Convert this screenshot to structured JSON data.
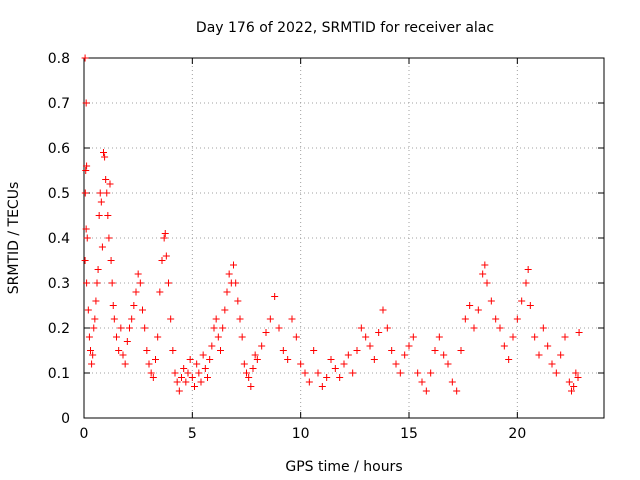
{
  "chart_data": {
    "type": "scatter",
    "title": "Day 176 of 2022, SRMTID for receiver alac",
    "xlabel": "GPS time / hours",
    "ylabel": "SRMTID / TECUs",
    "xlim": [
      0,
      24
    ],
    "ylim": [
      0,
      0.8
    ],
    "xticks": [
      0,
      5,
      10,
      15,
      20
    ],
    "yticks": [
      0,
      0.1,
      0.2,
      0.3,
      0.4,
      0.5,
      0.6,
      0.7,
      0.8
    ],
    "xtick_labels": [
      "0",
      "5",
      "10",
      "15",
      "20"
    ],
    "ytick_labels": [
      "0",
      "0.1",
      "0.2",
      "0.3",
      "0.4",
      "0.5",
      "0.6",
      "0.7",
      "0.8"
    ],
    "grid": true,
    "marker": "+",
    "color": "#ff0000",
    "series": [
      {
        "name": "SRMTID",
        "points": [
          [
            0.05,
            0.8
          ],
          [
            0.1,
            0.7
          ],
          [
            0.08,
            0.55
          ],
          [
            0.12,
            0.56
          ],
          [
            0.06,
            0.5
          ],
          [
            0.1,
            0.42
          ],
          [
            0.15,
            0.4
          ],
          [
            0.05,
            0.35
          ],
          [
            0.12,
            0.3
          ],
          [
            0.2,
            0.24
          ],
          [
            0.25,
            0.18
          ],
          [
            0.3,
            0.15
          ],
          [
            0.35,
            0.12
          ],
          [
            0.4,
            0.14
          ],
          [
            0.45,
            0.2
          ],
          [
            0.5,
            0.22
          ],
          [
            0.55,
            0.26
          ],
          [
            0.6,
            0.3
          ],
          [
            0.65,
            0.33
          ],
          [
            0.7,
            0.45
          ],
          [
            0.75,
            0.5
          ],
          [
            0.8,
            0.48
          ],
          [
            0.85,
            0.38
          ],
          [
            0.9,
            0.59
          ],
          [
            0.95,
            0.58
          ],
          [
            1.0,
            0.53
          ],
          [
            1.05,
            0.5
          ],
          [
            1.1,
            0.45
          ],
          [
            1.15,
            0.4
          ],
          [
            1.2,
            0.52
          ],
          [
            1.25,
            0.35
          ],
          [
            1.3,
            0.3
          ],
          [
            1.35,
            0.25
          ],
          [
            1.4,
            0.22
          ],
          [
            1.5,
            0.18
          ],
          [
            1.6,
            0.15
          ],
          [
            1.7,
            0.2
          ],
          [
            1.8,
            0.14
          ],
          [
            1.9,
            0.12
          ],
          [
            2.0,
            0.17
          ],
          [
            2.1,
            0.2
          ],
          [
            2.2,
            0.22
          ],
          [
            2.3,
            0.25
          ],
          [
            2.4,
            0.28
          ],
          [
            2.5,
            0.32
          ],
          [
            2.6,
            0.3
          ],
          [
            2.7,
            0.24
          ],
          [
            2.8,
            0.2
          ],
          [
            2.9,
            0.15
          ],
          [
            3.0,
            0.12
          ],
          [
            3.1,
            0.1
          ],
          [
            3.2,
            0.09
          ],
          [
            3.3,
            0.13
          ],
          [
            3.4,
            0.18
          ],
          [
            3.5,
            0.28
          ],
          [
            3.6,
            0.35
          ],
          [
            3.7,
            0.4
          ],
          [
            3.75,
            0.41
          ],
          [
            3.8,
            0.36
          ],
          [
            3.9,
            0.3
          ],
          [
            4.0,
            0.22
          ],
          [
            4.1,
            0.15
          ],
          [
            4.2,
            0.1
          ],
          [
            4.3,
            0.08
          ],
          [
            4.4,
            0.06
          ],
          [
            4.5,
            0.09
          ],
          [
            4.6,
            0.11
          ],
          [
            4.7,
            0.08
          ],
          [
            4.8,
            0.1
          ],
          [
            4.9,
            0.13
          ],
          [
            5.0,
            0.09
          ],
          [
            5.1,
            0.07
          ],
          [
            5.2,
            0.12
          ],
          [
            5.3,
            0.1
          ],
          [
            5.4,
            0.08
          ],
          [
            5.5,
            0.14
          ],
          [
            5.6,
            0.11
          ],
          [
            5.7,
            0.09
          ],
          [
            5.8,
            0.13
          ],
          [
            5.9,
            0.16
          ],
          [
            6.0,
            0.2
          ],
          [
            6.1,
            0.22
          ],
          [
            6.2,
            0.18
          ],
          [
            6.3,
            0.15
          ],
          [
            6.4,
            0.2
          ],
          [
            6.5,
            0.24
          ],
          [
            6.6,
            0.28
          ],
          [
            6.7,
            0.32
          ],
          [
            6.8,
            0.3
          ],
          [
            6.9,
            0.34
          ],
          [
            7.0,
            0.3
          ],
          [
            7.1,
            0.26
          ],
          [
            7.2,
            0.22
          ],
          [
            7.3,
            0.18
          ],
          [
            7.4,
            0.12
          ],
          [
            7.5,
            0.1
          ],
          [
            7.6,
            0.09
          ],
          [
            7.7,
            0.07
          ],
          [
            7.8,
            0.11
          ],
          [
            7.9,
            0.14
          ],
          [
            8.0,
            0.13
          ],
          [
            8.2,
            0.16
          ],
          [
            8.4,
            0.19
          ],
          [
            8.6,
            0.22
          ],
          [
            8.8,
            0.27
          ],
          [
            9.0,
            0.2
          ],
          [
            9.2,
            0.15
          ],
          [
            9.4,
            0.13
          ],
          [
            9.6,
            0.22
          ],
          [
            9.8,
            0.18
          ],
          [
            10.0,
            0.12
          ],
          [
            10.2,
            0.1
          ],
          [
            10.4,
            0.08
          ],
          [
            10.6,
            0.15
          ],
          [
            10.8,
            0.1
          ],
          [
            11.0,
            0.07
          ],
          [
            11.2,
            0.09
          ],
          [
            11.4,
            0.13
          ],
          [
            11.6,
            0.11
          ],
          [
            11.8,
            0.09
          ],
          [
            12.0,
            0.12
          ],
          [
            12.2,
            0.14
          ],
          [
            12.4,
            0.1
          ],
          [
            12.6,
            0.15
          ],
          [
            12.8,
            0.2
          ],
          [
            13.0,
            0.18
          ],
          [
            13.2,
            0.16
          ],
          [
            13.4,
            0.13
          ],
          [
            13.6,
            0.19
          ],
          [
            13.8,
            0.24
          ],
          [
            14.0,
            0.2
          ],
          [
            14.2,
            0.15
          ],
          [
            14.4,
            0.12
          ],
          [
            14.6,
            0.1
          ],
          [
            14.8,
            0.14
          ],
          [
            15.0,
            0.16
          ],
          [
            15.2,
            0.18
          ],
          [
            15.4,
            0.1
          ],
          [
            15.6,
            0.08
          ],
          [
            15.8,
            0.06
          ],
          [
            16.0,
            0.1
          ],
          [
            16.2,
            0.15
          ],
          [
            16.4,
            0.18
          ],
          [
            16.6,
            0.14
          ],
          [
            16.8,
            0.12
          ],
          [
            17.0,
            0.08
          ],
          [
            17.2,
            0.06
          ],
          [
            17.4,
            0.15
          ],
          [
            17.6,
            0.22
          ],
          [
            17.8,
            0.25
          ],
          [
            18.0,
            0.2
          ],
          [
            18.2,
            0.24
          ],
          [
            18.4,
            0.32
          ],
          [
            18.5,
            0.34
          ],
          [
            18.6,
            0.3
          ],
          [
            18.8,
            0.26
          ],
          [
            19.0,
            0.22
          ],
          [
            19.2,
            0.2
          ],
          [
            19.4,
            0.16
          ],
          [
            19.6,
            0.13
          ],
          [
            19.8,
            0.18
          ],
          [
            20.0,
            0.22
          ],
          [
            20.2,
            0.26
          ],
          [
            20.4,
            0.3
          ],
          [
            20.5,
            0.33
          ],
          [
            20.6,
            0.25
          ],
          [
            20.8,
            0.18
          ],
          [
            21.0,
            0.14
          ],
          [
            21.2,
            0.2
          ],
          [
            21.4,
            0.16
          ],
          [
            21.6,
            0.12
          ],
          [
            21.8,
            0.1
          ],
          [
            22.0,
            0.14
          ],
          [
            22.2,
            0.18
          ],
          [
            22.4,
            0.08
          ],
          [
            22.5,
            0.06
          ],
          [
            22.6,
            0.07
          ],
          [
            22.7,
            0.1
          ],
          [
            22.8,
            0.09
          ],
          [
            22.85,
            0.19
          ]
        ]
      }
    ]
  }
}
